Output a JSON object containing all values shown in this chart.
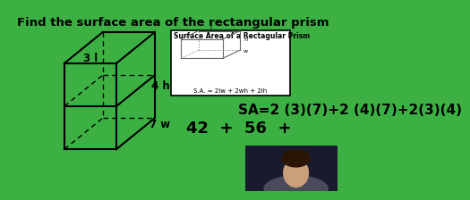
{
  "bg_color": "#3cb043",
  "title": "Find the surface area of the rectangular prism",
  "title_color": "black",
  "title_fontsize": 9.5,
  "formula_text": "SA=2 (3)(7)+2 (4)(7)+2(3)(4)",
  "formula2_text": "42  +  56  +",
  "formula_color": "black",
  "formula_fontsize": 11,
  "label_3l": "3 l",
  "label_4h": "4 h",
  "label_7w": "7 w",
  "inset_title": "Surface Area of a Rectagular Prism",
  "inset_formula": "S.A. = 2lw + 2wh + 2lh",
  "prism_edge_color": "black",
  "inset_bg": "white",
  "inset_border": "black",
  "person_bg": "#1a1a2e",
  "person_skin": "#c8a07a",
  "person_hair": "#2a1505"
}
